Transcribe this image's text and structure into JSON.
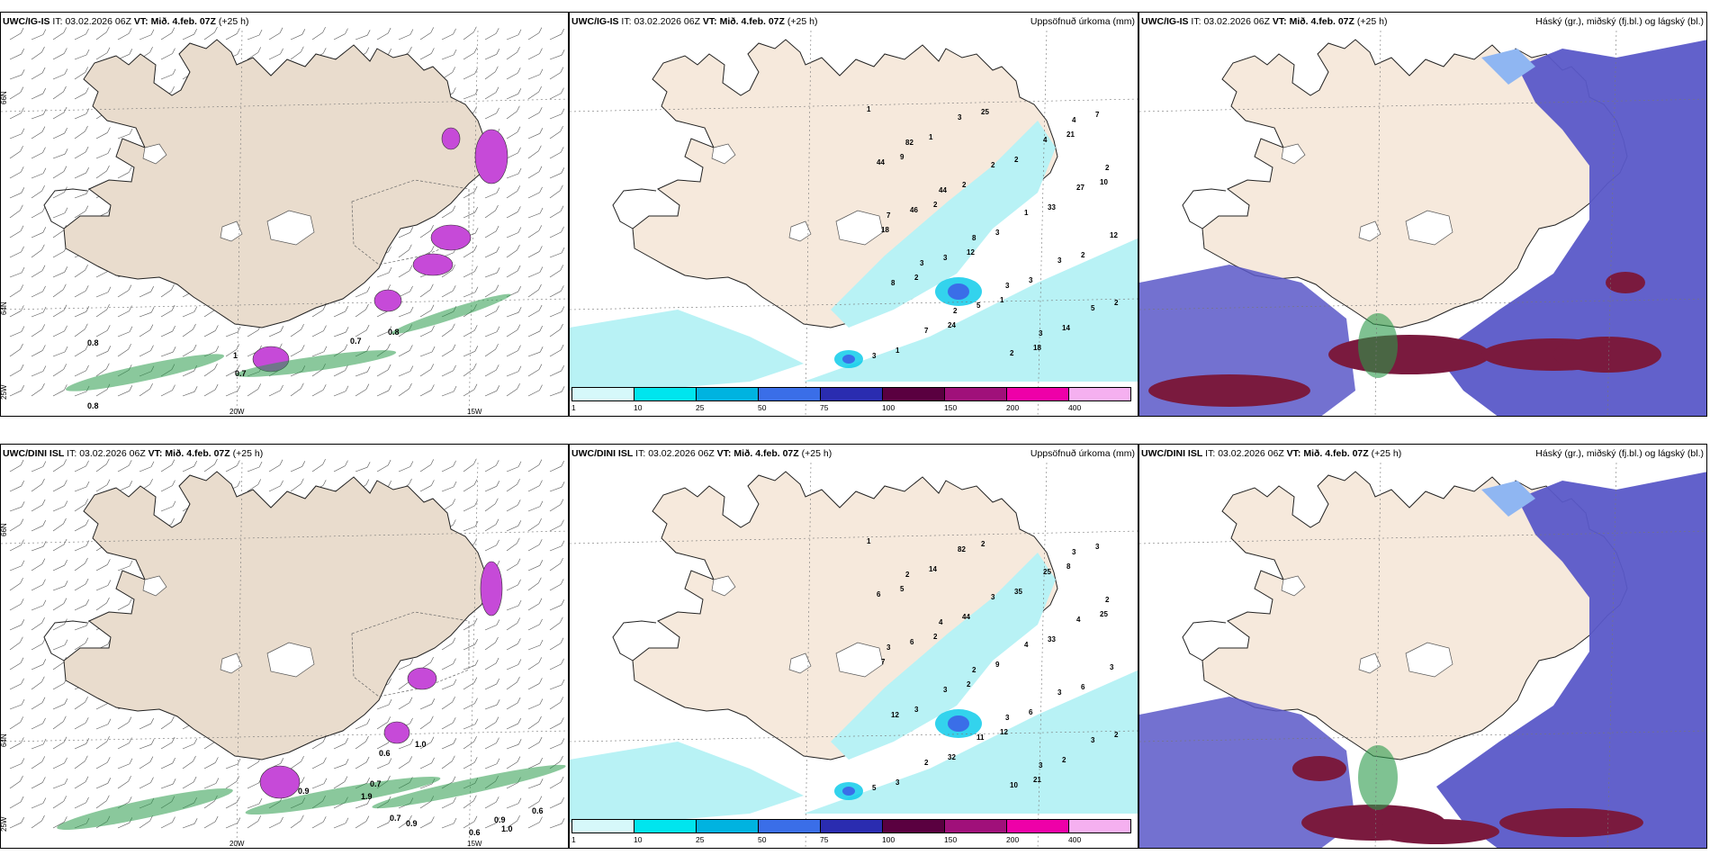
{
  "common": {
    "it_label": "IT:",
    "it_value": "03.02.2026 06Z",
    "vt_label": "VT:",
    "vt_value": "Mið. 4.feb. 07Z",
    "lead": "(+25 h)"
  },
  "rows": [
    {
      "model": "UWC/IG-IS",
      "panels": [
        {
          "kind": "wind",
          "right_title": ""
        },
        {
          "kind": "precip",
          "right_title": "Uppsöfnuð úrkoma (mm)"
        },
        {
          "kind": "cloud",
          "right_title": "Háský (gr.), miðský (fj.bl.) og lágský (bl.)"
        }
      ]
    },
    {
      "model": "UWC/DINI ISL",
      "panels": [
        {
          "kind": "wind",
          "right_title": ""
        },
        {
          "kind": "precip",
          "right_title": "Uppsöfnuð úrkoma (mm)"
        },
        {
          "kind": "cloud",
          "right_title": "Háský (gr.), miðský (fj.bl.) og lágský (bl.)"
        }
      ]
    }
  ],
  "lat_labels": [
    "66N",
    "64N",
    "25W"
  ],
  "lon_labels": [
    "20W",
    "15W"
  ],
  "colorbar": {
    "ticks": [
      "1",
      "10",
      "25",
      "50",
      "75",
      "100",
      "150",
      "200",
      "400"
    ],
    "colors": [
      "#d6f8fa",
      "#00e5ee",
      "#00b3e0",
      "#3a6ee8",
      "#2a2cb0",
      "#5a0040",
      "#a0107a",
      "#ee00a8",
      "#f5b0f0"
    ]
  },
  "colors": {
    "land": "#f6e9dc",
    "landWind": "#e9dccd",
    "sea": "#ffffff",
    "precipLight": "#b8f2f5",
    "high": "#7a1a3e",
    "mid": "#5a58c8",
    "low": "#8fb6f2",
    "green": "#2a9a4a"
  },
  "precip_labels_top": [
    "1",
    "9",
    "2",
    "12",
    "1",
    "18",
    "21",
    "10",
    "18",
    "2",
    "24",
    "25",
    "2",
    "33",
    "2",
    "2",
    "1",
    "1",
    "2",
    "3",
    "3",
    "14",
    "7",
    "44",
    "46",
    "3",
    "5",
    "2",
    "4",
    "27",
    "12",
    "8",
    "7",
    "3",
    "2",
    "1",
    "3",
    "5",
    "3",
    "82",
    "44",
    "8",
    "3",
    "3",
    "4",
    "2",
    "7",
    "3",
    "2"
  ],
  "precip_labels_bottom": [
    "1",
    "5",
    "2",
    "2",
    "12",
    "21",
    "8",
    "25",
    "7",
    "3",
    "32",
    "2",
    "35",
    "33",
    "6",
    "2",
    "3",
    "14",
    "44",
    "9",
    "6",
    "2",
    "3",
    "6",
    "6",
    "3",
    "11",
    "10",
    "25",
    "4",
    "3",
    "12",
    "2",
    "82",
    "3",
    "4",
    "3",
    "3",
    "5",
    "2",
    "4",
    "2",
    "3",
    "3",
    "3",
    "2",
    "3"
  ],
  "wind_values_top": [
    "0.8",
    "0.8",
    "0.7",
    "0.7",
    "0.8",
    "1"
  ],
  "wind_values_bottom": [
    "1.0",
    "0.6",
    "0.9",
    "0.7",
    "1.9",
    "0.7",
    "0.9",
    "0.9",
    "1.0",
    "0.6",
    "0.6"
  ]
}
